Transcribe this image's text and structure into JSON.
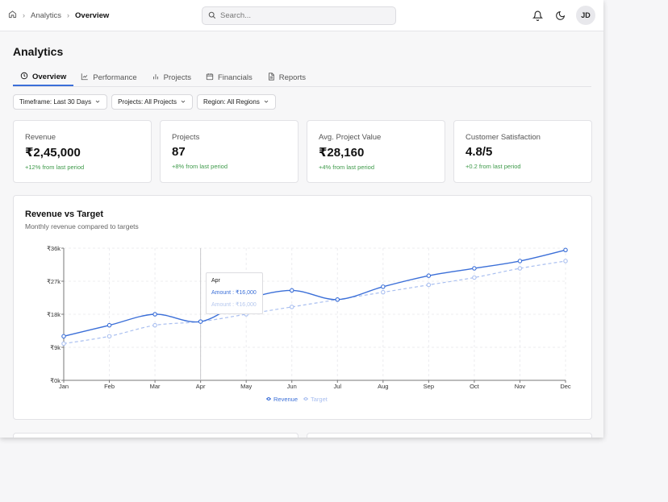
{
  "breadcrumb": {
    "items": [
      "Analytics",
      "Overview"
    ]
  },
  "search": {
    "placeholder": "Search..."
  },
  "user": {
    "initials": "JD"
  },
  "page": {
    "title": "Analytics"
  },
  "tabs": [
    {
      "label": "Overview",
      "icon": "clock-icon"
    },
    {
      "label": "Performance",
      "icon": "chart-line-icon"
    },
    {
      "label": "Projects",
      "icon": "bar-chart-icon"
    },
    {
      "label": "Financials",
      "icon": "calendar-icon"
    },
    {
      "label": "Reports",
      "icon": "document-icon"
    }
  ],
  "filters": [
    "Timeframe: Last 30 Days",
    "Projects: All Projects",
    "Region: All Regions"
  ],
  "stats": [
    {
      "label": "Revenue",
      "value": "₹2,45,000",
      "change": "+12% from last period"
    },
    {
      "label": "Projects",
      "value": "87",
      "change": "+8% from last period"
    },
    {
      "label": "Avg. Project Value",
      "value": "₹28,160",
      "change": "+4% from last period"
    },
    {
      "label": "Customer Satisfaction",
      "value": "4.8/5",
      "change": "+0.2 from last period"
    }
  ],
  "chart": {
    "title": "Revenue vs Target",
    "subtitle": "Monthly revenue compared to targets",
    "tooltip": {
      "month": "Apr",
      "revenue_line": "Amount : ₹16,000",
      "target_line": "Amount : ₹16,000"
    }
  },
  "colors": {
    "accent": "#3b6fd8",
    "target": "#a9bff0",
    "positive": "#3e9a4a"
  },
  "chart_data": {
    "type": "line",
    "x": [
      "Jan",
      "Feb",
      "Mar",
      "Apr",
      "May",
      "Jun",
      "Jul",
      "Aug",
      "Sep",
      "Oct",
      "Nov",
      "Dec"
    ],
    "series": [
      {
        "name": "Revenue",
        "values": [
          12000,
          15000,
          18000,
          16000,
          22000,
          24500,
          22000,
          25500,
          28500,
          30500,
          32500,
          35500
        ]
      },
      {
        "name": "Target",
        "values": [
          10000,
          12000,
          15000,
          16000,
          18000,
          20000,
          22000,
          24000,
          26000,
          28000,
          30500,
          32500
        ]
      }
    ],
    "yticks": [
      "₹0k",
      "₹9k",
      "₹18k",
      "₹27k",
      "₹36k"
    ],
    "ylim": [
      0,
      36000
    ],
    "grid": true,
    "legend": "bottom-center"
  }
}
